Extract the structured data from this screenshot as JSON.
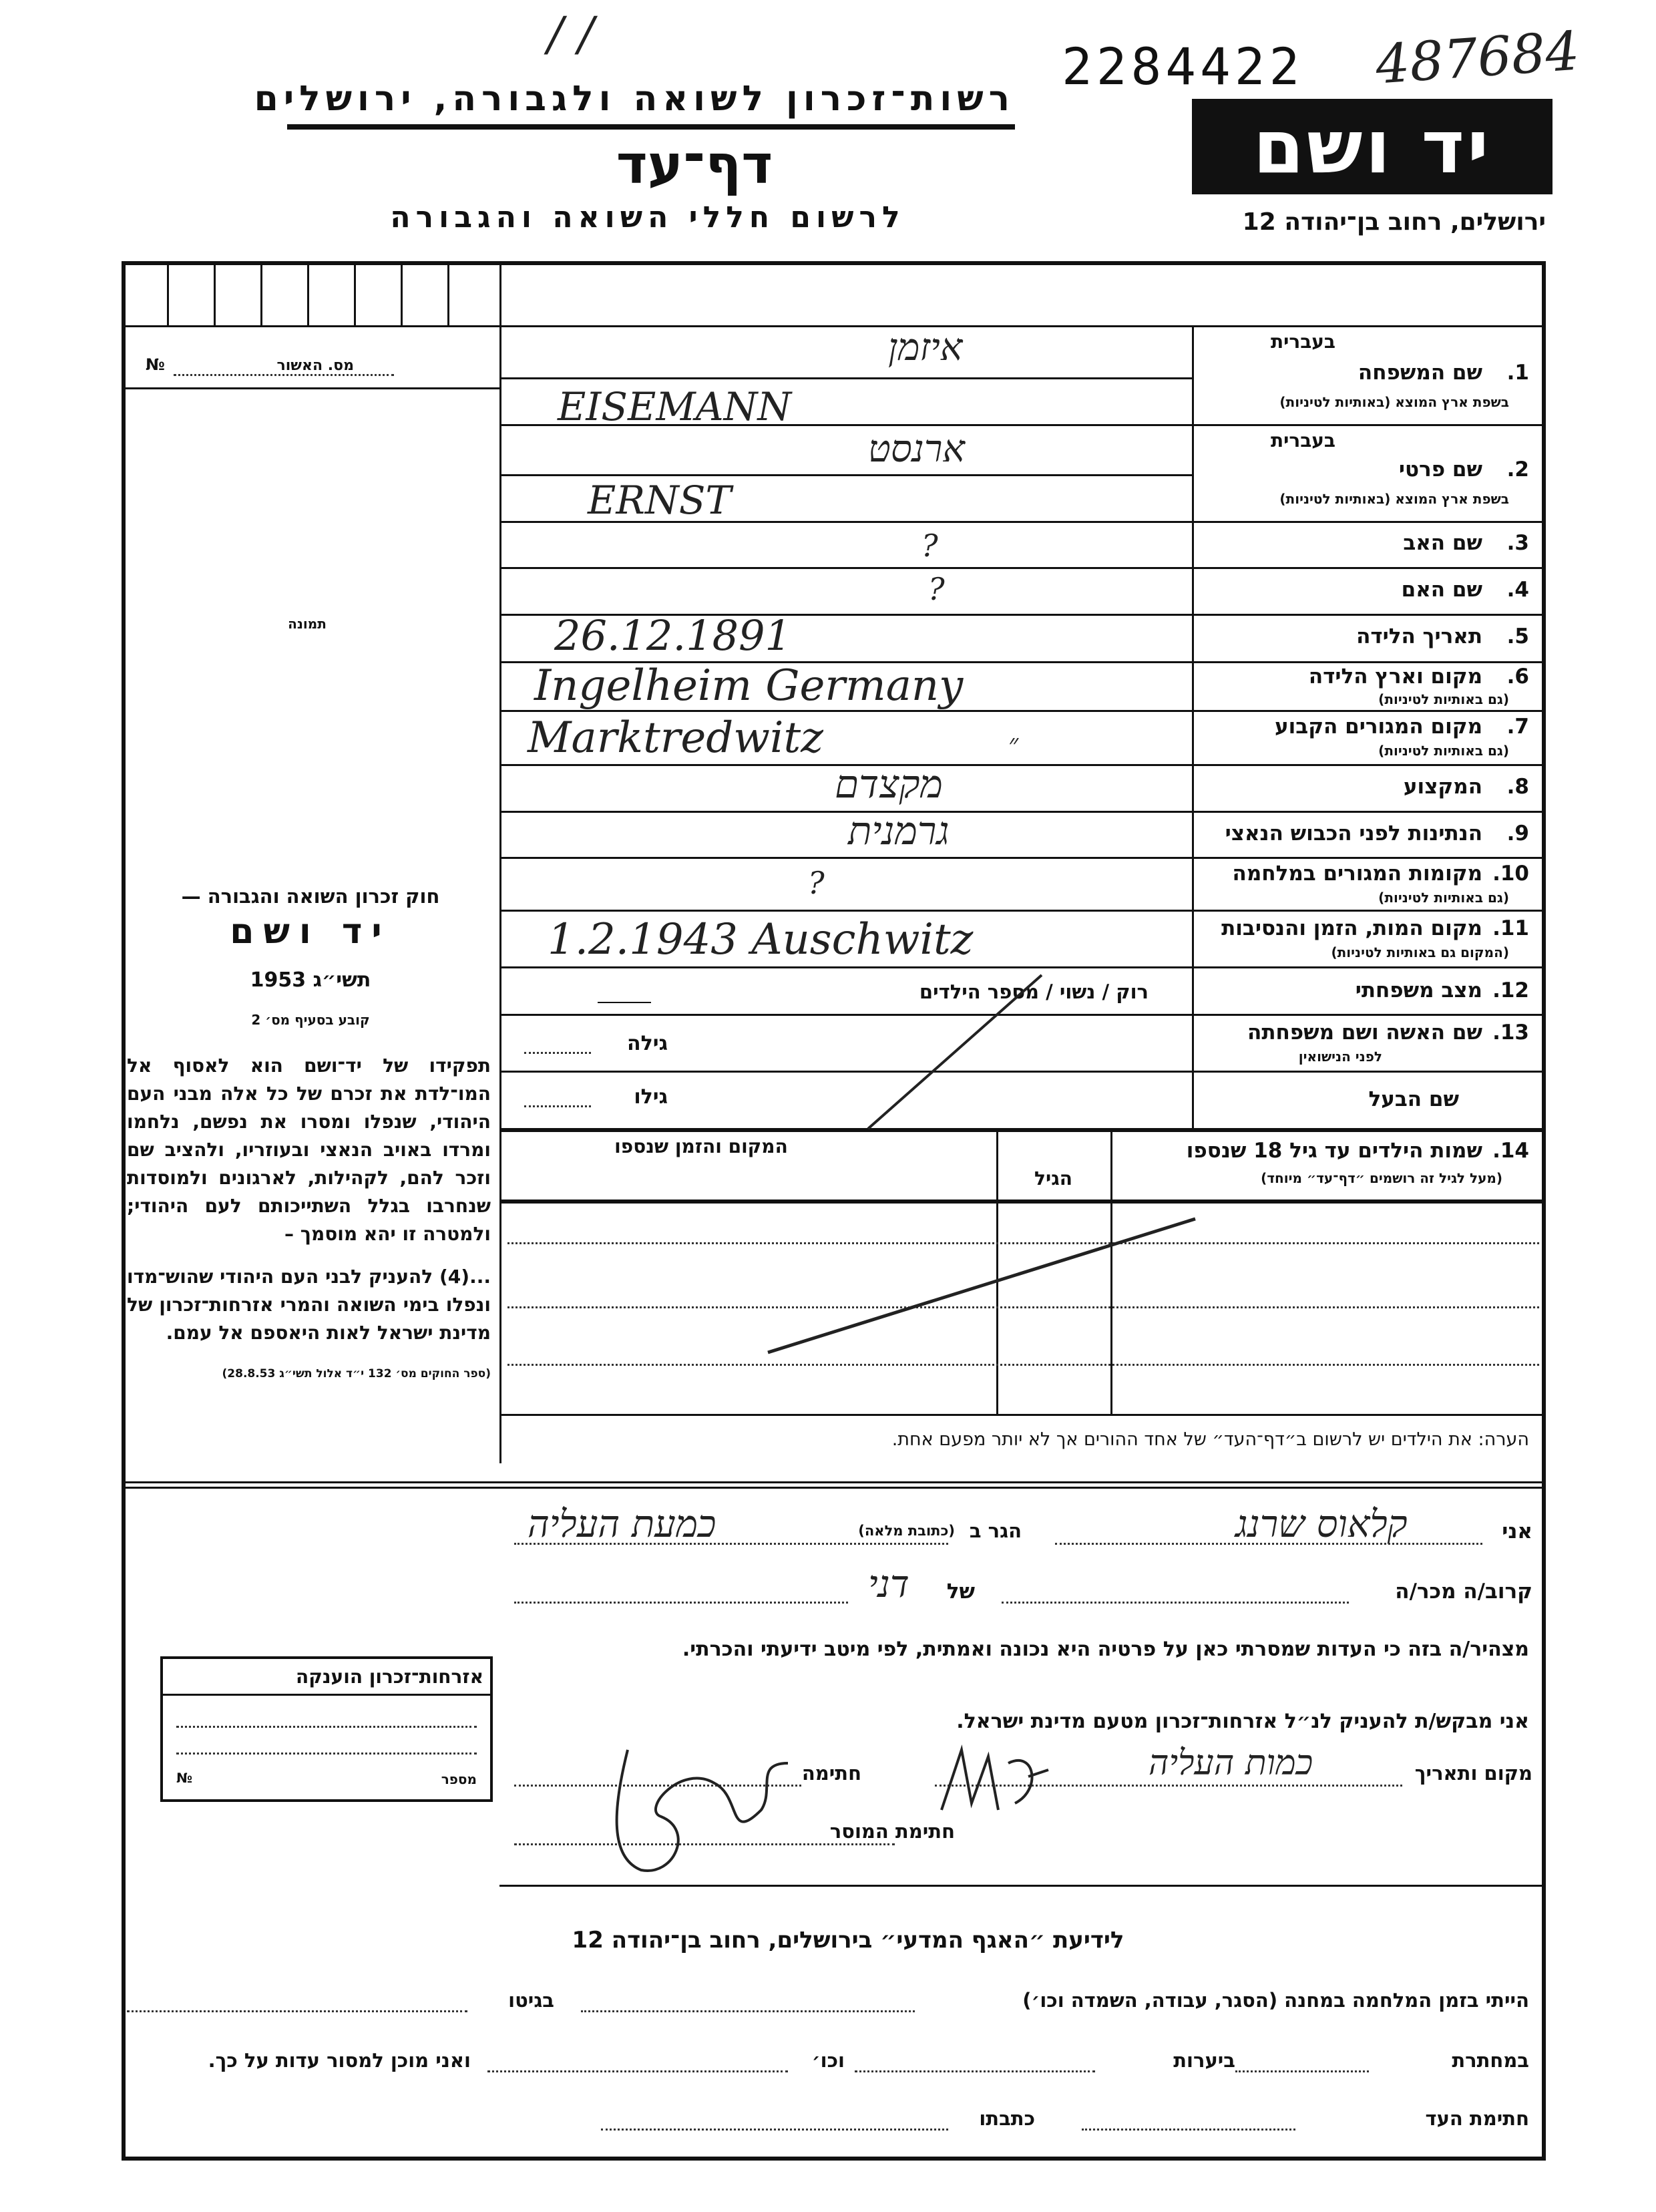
{
  "header": {
    "org_line": "רשות־זכרון לשואה ולגבורה, ירושלים",
    "title": "דף־עד",
    "subtitle": "לרשום חללי השואה והגבורה",
    "logo": "יד ושם",
    "address": "ירושלים, רחוב בן־יהודה 12",
    "serial_number": "2284422",
    "handwritten_number": "487684"
  },
  "left_column": {
    "cert_label": "מס. האשור",
    "cert_no": "№",
    "photo_label": "תמונה",
    "law_title": "חוק זכרון השואה והגבורה —",
    "law_name": "יד ושם",
    "law_year": "תשי״ג 1953",
    "law_clause": "קובע בסעיף מס׳ 2",
    "law_paragraph_1": "תפקידו של יד־ושם הוא לאסוף אל המו־לדת את זכרם של כל אלה מבני העם היהודי, שנפלו ומסרו את נפשם, נלחמו ומרדו באויב הנאצי ובעוזריו, ולהציב שם וזכר להם, לקהילות, לארגונים ולמוסדות שנחרבו בגלל השתייכותם לעם היהודי; ולמטרה זו יהא מוסמך –",
    "law_paragraph_2": "...(4) להעניק לבני העם היהודי שהוש־מדו ונפלו בימי השואה והמרי אזרחות־זכרון של מדינת ישראל לאות היאספם אל עמם.",
    "law_citation": "(ספר החוקים מס׳ 132 י״ד אלול תשי״ג 28.8.53)",
    "citizenship_box_title": "אזרחות־זכרון הוענקה",
    "citizenship_number_label": "מספר",
    "citizenship_no": "№"
  },
  "fields": {
    "hebrew_hint": "בעברית",
    "f1": {
      "num": "1.",
      "label": "שם המשפחה",
      "sub": "בשפת ארץ המוצא (באותיות לטיניות)",
      "hebrew_value": "איזמן",
      "latin_value": "EISEMANN"
    },
    "f2": {
      "num": "2.",
      "label": "שם פרטי",
      "sub": "בשפת ארץ המוצא (באותיות לטיניות)",
      "hebrew_value": "ארנסט",
      "latin_value": "ERNST"
    },
    "f3": {
      "num": "3.",
      "label": "שם האב",
      "value": "?"
    },
    "f4": {
      "num": "4.",
      "label": "שם האם",
      "value": "?"
    },
    "f5": {
      "num": "5.",
      "label": "תאריך הלידה",
      "value": "26.12.1891"
    },
    "f6": {
      "num": "6.",
      "label": "מקום וארץ הלידה",
      "sub": "(גם באותיות לטיניות)",
      "value": "Ingelheim Germany"
    },
    "f7": {
      "num": "7.",
      "label": "מקום המגורים הקבוע",
      "sub": "(גם באותיות לטיניות)",
      "value": "Marktredwitz",
      "value_mark": "״"
    },
    "f8": {
      "num": "8.",
      "label": "המקצוע",
      "value": "מקצדם"
    },
    "f9": {
      "num": "9.",
      "label": "הנתינות לפני הכבוש הנאצי",
      "value": "גרמנית"
    },
    "f10": {
      "num": "10.",
      "label": "מקומות המגורים במלחמה",
      "sub": "(גם באותיות לטיניות)",
      "value": "?"
    },
    "f11": {
      "num": "11.",
      "label": "מקום המות, הזמן והנסיבות",
      "sub": "(המקום גם באותיות לטיניות)",
      "value": "1.2.1943 Auschwitz"
    },
    "f12": {
      "num": "12.",
      "label": "מצב משפחתי",
      "options": "רוק / נשוי / מספר הילדים"
    },
    "f13": {
      "num": "13.",
      "label": "שם האשה ושם משפחתה",
      "sub": "לפני הנישואין",
      "age_label": "גילה"
    },
    "husband": {
      "label": "שם הבעל",
      "age_label": "גילו"
    },
    "f14": {
      "num": "14.",
      "label": "שמות הילדים עד גיל 18 שנספו",
      "sub": "(מעל לגיל זה רושמים ״דף־עד״ מיוחד)",
      "age_col": "הגיל",
      "place_col": "המקום והזמן שנספו"
    },
    "note": "הערה: את הילדים יש לרשום ב״דף־העד״ של אחד ההורים אך לא יותר מפעם אחת."
  },
  "declaration": {
    "i_label": "אני",
    "declarant_name": "קלאוס שרנג",
    "living_label": "הגר ב",
    "address_hint": "(כתובת מלאה)",
    "declarant_address": "כמעת העליה",
    "relation_label": "קרוב/ה מכר/ה",
    "of_label": "של",
    "relation_value": "דני",
    "statement": "מצהיר/ה בזה כי העדות שמסרתי כאן על פרטיה היא נכונה ואמתית, לפי מיטב ידיעתי והכרתי.",
    "request": "אני מבקש/ת להעניק לנ״ל אזרחות־זכרון מטעם מדינת ישראל.",
    "place_date_label": "מקום ותאריך",
    "place_date_value": "כמות העליה",
    "signature_label": "חתימה",
    "giver_signature_label": "חתימת המוסר"
  },
  "bottom": {
    "title": "לידיעת ״האגף המדעי״ בירושלים, רחוב בן־יהודה 12",
    "line1_label": "הייתי בזמן המלחמה במחנה (הסגר, עבודה, השמדה וכו׳)",
    "line1_mid": "בגיטו",
    "line2_a": "במחתרת",
    "line2_b": "ביערות",
    "line2_c": "וכו׳",
    "line2_d": "ואני מוכן למסור עדות על כך.",
    "line3_a": "חתימת העד",
    "line3_b": "כתבתו"
  }
}
